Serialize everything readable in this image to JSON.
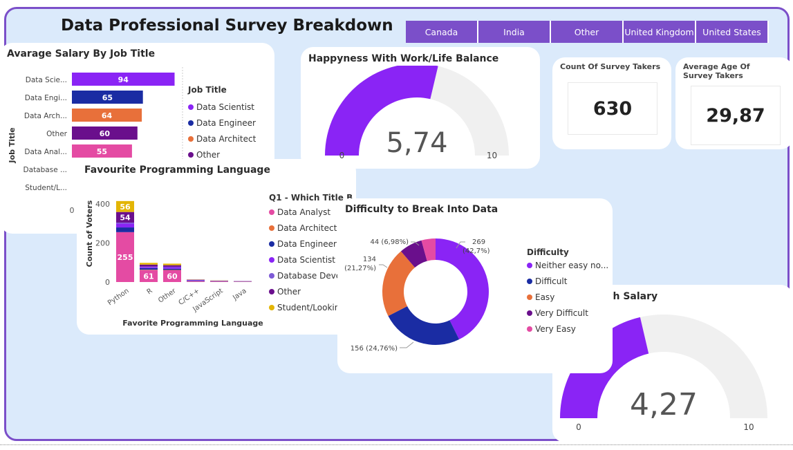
{
  "page": {
    "title": "Data Professional Survey Breakdown"
  },
  "slicer": [
    "Canada",
    "India",
    "Other",
    "United Kingdom",
    "United States"
  ],
  "kpis": {
    "count": {
      "label": "Count Of Survey Takers",
      "value": "630"
    },
    "age": {
      "label": "Average Age Of Survey Takers",
      "value": "29,87"
    }
  },
  "colors": {
    "purple": "#8a24f5",
    "navy": "#1a2ca3",
    "orange": "#e8703a",
    "darkpurple": "#6a0f8c",
    "pink": "#e44ba3",
    "midpurple": "#7d5ad6",
    "gold": "#e3b505",
    "track": "#f0f0f0"
  },
  "chart_data": [
    {
      "type": "bar",
      "orientation": "horizontal",
      "title": "Avarage Salary By Job Title",
      "ylabel": "Job Title",
      "categories": [
        "Data Scie...",
        "Data Engi...",
        "Data Arch...",
        "Other",
        "Data Anal...",
        "Database ...",
        "Student/L..."
      ],
      "values": [
        94,
        65,
        64,
        60,
        55,
        null,
        null
      ],
      "colors": [
        "#8a24f5",
        "#1a2ca3",
        "#e8703a",
        "#6a0f8c",
        "#e44ba3",
        "#7d5ad6",
        "#e3b505"
      ],
      "xlim": [
        0,
        100
      ],
      "xtick_visible": "0",
      "legend_title": "Job Title",
      "legend": [
        "Data Scientist",
        "Data Engineer",
        "Data Architect",
        "Other"
      ]
    },
    {
      "type": "gauge",
      "title": "Happyness With Work/Life Balance",
      "value": 5.74,
      "value_label": "5,74",
      "min": 0,
      "max": 10,
      "min_label": "0",
      "max_label": "10"
    },
    {
      "type": "bar",
      "stacked": true,
      "title": "Favourite Programming Language",
      "xlabel": "Favorite Programming Language",
      "ylabel": "Count of Voters",
      "categories": [
        "Python",
        "R",
        "Other",
        "C/C++",
        "JavaScript",
        "Java"
      ],
      "yticks": [
        "0",
        "200",
        "400"
      ],
      "ylim": [
        0,
        400
      ],
      "legend_title": "Q1 - Which Title B...",
      "series": [
        {
          "name": "Data Analyst",
          "color": "#e44ba3",
          "values": [
            255,
            61,
            60,
            3,
            2,
            1
          ]
        },
        {
          "name": "Data Architect",
          "color": "#e8703a",
          "values": [
            0,
            2,
            2,
            1,
            1,
            1
          ]
        },
        {
          "name": "Data Engineer",
          "color": "#1a2ca3",
          "values": [
            24,
            8,
            6,
            2,
            1,
            1
          ]
        },
        {
          "name": "Data Scientist",
          "color": "#8a24f5",
          "values": [
            20,
            6,
            8,
            3,
            1,
            1
          ]
        },
        {
          "name": "Database Devel...",
          "color": "#7d5ad6",
          "values": [
            5,
            2,
            2,
            1,
            1,
            0
          ]
        },
        {
          "name": "Other",
          "color": "#6a0f8c",
          "values": [
            54,
            10,
            8,
            2,
            1,
            1
          ]
        },
        {
          "name": "Student/Lookin...",
          "color": "#e3b505",
          "values": [
            56,
            9,
            8,
            1,
            1,
            0
          ]
        }
      ],
      "data_labels": [
        {
          "category": "Python",
          "series": "Data Analyst",
          "text": "255"
        },
        {
          "category": "Python",
          "series": "Other",
          "text": "54"
        },
        {
          "category": "Python",
          "series": "Student/Lookin...",
          "text": "56"
        },
        {
          "category": "R",
          "series": "Data Analyst",
          "text": "61"
        },
        {
          "category": "Other",
          "series": "Data Analyst",
          "text": "60"
        }
      ]
    },
    {
      "type": "pie",
      "donut": true,
      "title": "Difficulty to Break Into Data",
      "legend_title": "Difficulty",
      "slices": [
        {
          "name": "Neither easy no...",
          "value": 269,
          "pct": "42,7%",
          "color": "#8a24f5"
        },
        {
          "name": "Difficult",
          "value": 156,
          "pct": "24,76%",
          "color": "#1a2ca3"
        },
        {
          "name": "Easy",
          "value": 134,
          "pct": "21,27%",
          "color": "#e8703a"
        },
        {
          "name": "Very Difficult",
          "value": 44,
          "pct": "6,98%",
          "color": "#6a0f8c"
        },
        {
          "name": "Very Easy",
          "value": 27,
          "pct": "4,29%",
          "color": "#e44ba3"
        }
      ],
      "labels": [
        "269",
        "(42,7%)",
        "156 (24,76%)",
        "134",
        "(21,27%)",
        "44 (6,98%)"
      ]
    },
    {
      "type": "gauge",
      "title": "ith Salary",
      "value": 4.27,
      "value_label": "4,27",
      "min": 0,
      "max": 10,
      "min_label": "0",
      "max_label": "10"
    }
  ]
}
